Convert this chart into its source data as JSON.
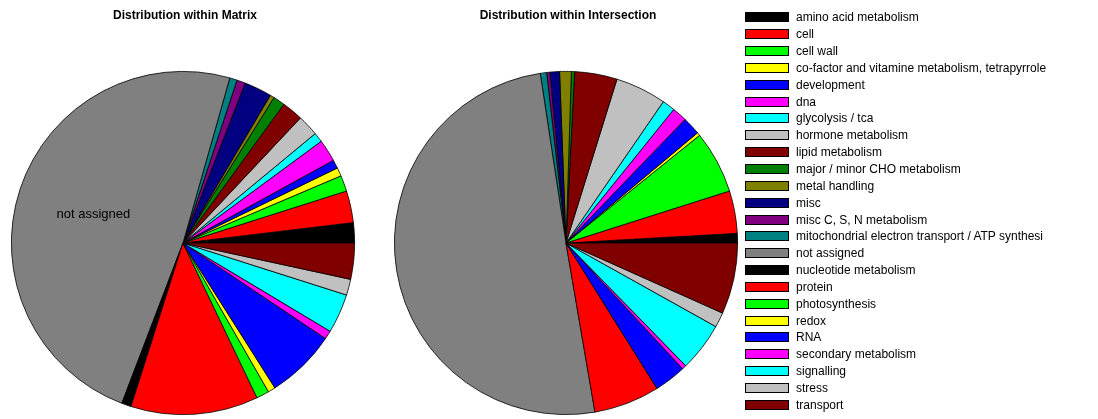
{
  "chart_data": [
    {
      "type": "pie",
      "title": "Distribution within Matrix",
      "categories": [
        null,
        null,
        null,
        null,
        null,
        null,
        null,
        null,
        null,
        null,
        null,
        null,
        null,
        null,
        "not assigned",
        null,
        null,
        null,
        null,
        null,
        null,
        null,
        null,
        null
      ],
      "values": [
        1.9,
        3.0,
        1.5,
        0.8,
        0.8,
        2.1,
        0.9,
        2.0,
        2.0,
        1.1,
        0.4,
        2.6,
        0.8,
        0.7,
        48.6,
        0.9,
        12.0,
        1.2,
        0.7,
        6.6,
        0.8,
        3.7,
        1.5,
        3.4
      ],
      "colors": [
        "#000000",
        "#ff0000",
        "#00ff00",
        "#ffff00",
        "#0000ff",
        "#ff00ff",
        "#00ffff",
        "#c0c0c0",
        "#800000",
        "#008000",
        "#808000",
        "#000080",
        "#800080",
        "#008080",
        "#808080",
        "#000000",
        "#ff0000",
        "#00ff00",
        "#ffff00",
        "#0000ff",
        "#ff00ff",
        "#00ffff",
        "#c0c0c0",
        "#800000"
      ],
      "legend": false
    },
    {
      "type": "pie",
      "title": "Distribution within Intersection",
      "categories": [
        "amino acid metabolism",
        "cell",
        "cell wall",
        "co-factor and vitamine metabolism, tetrapyrrole",
        "development",
        "dna",
        "glycolysis / tca",
        "hormone metabolism",
        "lipid metabolism",
        "major / minor CHO metabolism",
        "metal handling",
        "misc",
        "misc C, S, N metabolism",
        "mitochondrial electron transport / ATP synthesi",
        "not assigned",
        "nucleotide metabolism",
        "protein",
        "photosynthesis",
        "redox",
        "RNA",
        "secondary metabolism",
        "signalling",
        "stress",
        "transport"
      ],
      "values": [
        0.9,
        4.0,
        5.9,
        0.3,
        1.7,
        1.4,
        1.2,
        4.8,
        4.0,
        0.3,
        1.1,
        0.9,
        0.3,
        0.6,
        50.3,
        0,
        6.2,
        0,
        0,
        3.0,
        0.4,
        4.6,
        1.4,
        6.7
      ],
      "colors": [
        "#000000",
        "#ff0000",
        "#00ff00",
        "#ffff00",
        "#0000ff",
        "#ff00ff",
        "#00ffff",
        "#c0c0c0",
        "#800000",
        "#008000",
        "#808000",
        "#000080",
        "#800080",
        "#008080",
        "#808080",
        "#000000",
        "#ff0000",
        "#00ff00",
        "#ffff00",
        "#0000ff",
        "#ff00ff",
        "#00ffff",
        "#c0c0c0",
        "#800000"
      ],
      "legend": "right"
    }
  ]
}
